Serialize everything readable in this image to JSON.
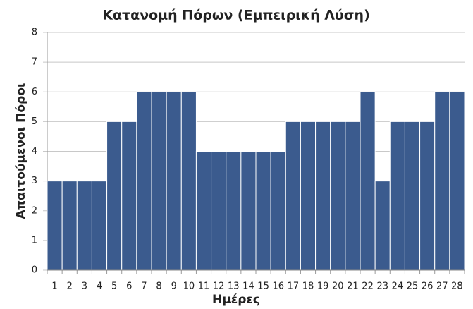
{
  "chart_data": {
    "type": "bar",
    "title": "Κατανομή Πόρων (Εμπειρική Λύση)",
    "x_label": "Ημέρες",
    "y_label": "Απαιτούμενοι Πόροι",
    "categories": [
      1,
      2,
      3,
      4,
      5,
      6,
      7,
      8,
      9,
      10,
      11,
      12,
      13,
      14,
      15,
      16,
      17,
      18,
      19,
      20,
      21,
      22,
      23,
      24,
      25,
      26,
      27,
      28
    ],
    "values": [
      3,
      3,
      3,
      3,
      5,
      5,
      6,
      6,
      6,
      6,
      4,
      4,
      4,
      4,
      4,
      4,
      5,
      5,
      5,
      5,
      5,
      6,
      3,
      5,
      5,
      5,
      6,
      6
    ],
    "color": "#3b5b8e",
    "ylim": [
      0,
      8
    ],
    "yticks": [
      0,
      1,
      2,
      3,
      4,
      5,
      6,
      7,
      8
    ],
    "grid": true
  }
}
